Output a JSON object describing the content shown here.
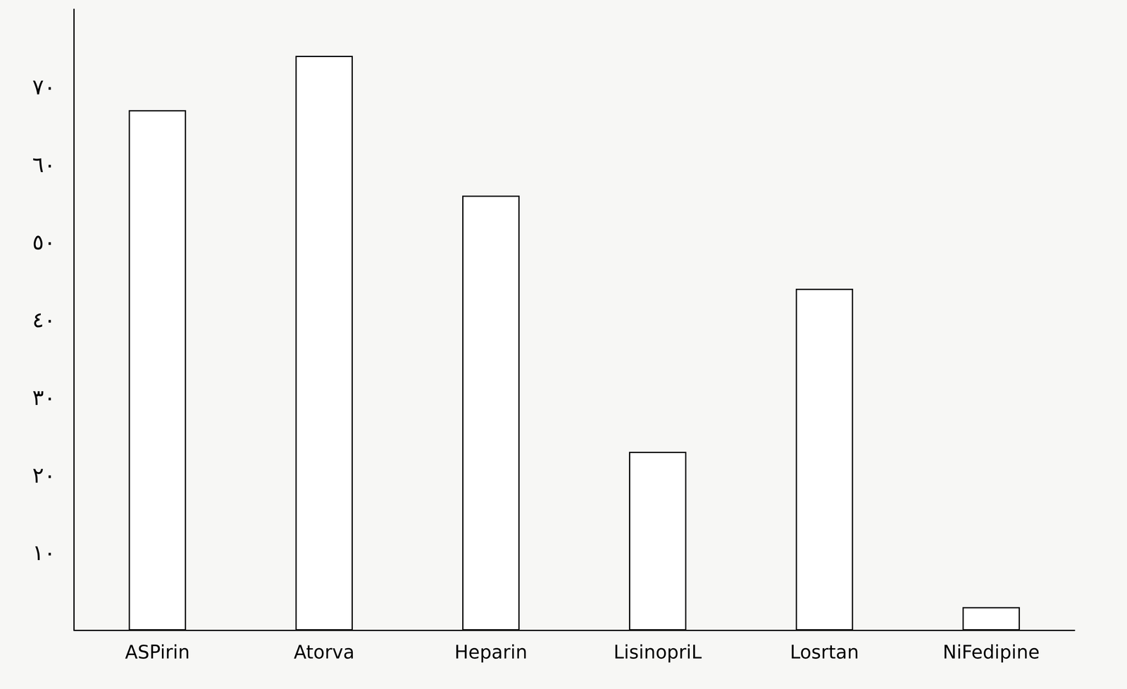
{
  "chart_data": {
    "type": "bar",
    "categories": [
      "ASPirin",
      "Atorva",
      "Heparin",
      "LisinopriL",
      "Losrtan",
      "NiFedipine"
    ],
    "values": [
      67,
      74,
      56,
      23,
      44,
      3
    ],
    "color": "#ffffff",
    "ylim": [
      0,
      80
    ],
    "yticks": [
      {
        "value": 10,
        "label": "١٠"
      },
      {
        "value": 20,
        "label": "٢٠"
      },
      {
        "value": 30,
        "label": "٣٠"
      },
      {
        "value": 40,
        "label": "٤٠"
      },
      {
        "value": 50,
        "label": "٥٠"
      },
      {
        "value": 60,
        "label": "٦٠"
      },
      {
        "value": 70,
        "label": "٧٠"
      }
    ],
    "grid": false
  }
}
